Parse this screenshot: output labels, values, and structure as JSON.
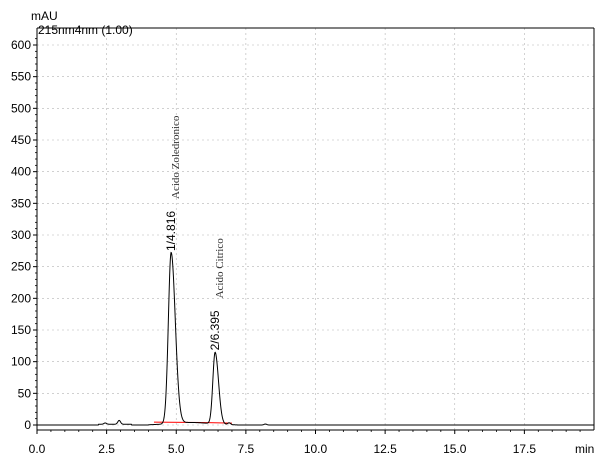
{
  "chart_data": {
    "type": "line",
    "y_unit": "mAU",
    "x_unit": "min",
    "channel_label": "215nm4nm (1.00)",
    "xlim": [
      0,
      20
    ],
    "ylim": [
      -10,
      630
    ],
    "x_ticks": [
      0.0,
      2.5,
      5.0,
      7.5,
      10.0,
      12.5,
      15.0,
      17.5
    ],
    "x_tick_labels": [
      "0.0",
      "2.5",
      "5.0",
      "7.5",
      "10.0",
      "12.5",
      "15.0",
      "17.5"
    ],
    "y_ticks": [
      0,
      50,
      100,
      150,
      200,
      250,
      300,
      350,
      400,
      450,
      500,
      550,
      600
    ],
    "y_tick_labels": [
      "0",
      "50",
      "100",
      "150",
      "200",
      "250",
      "300",
      "350",
      "400",
      "450",
      "500",
      "550",
      "600"
    ],
    "grid": true,
    "trace_color": "#000000",
    "baseline_color": "#ff0000",
    "grid_color": "#b4b4b4",
    "peaks": [
      {
        "number_label": "1",
        "retention_time_label": "4.816",
        "retention_time": 4.816,
        "height": 270,
        "name": "Acido Zoledronico",
        "sigma": 0.11
      },
      {
        "number_label": "2",
        "retention_time_label": "6.395",
        "retention_time": 6.395,
        "height": 113,
        "name": "Acido Citrico",
        "sigma": 0.09
      }
    ],
    "minor_peaks": [
      {
        "x": 2.95,
        "height": 6
      },
      {
        "x": 2.45,
        "height": 2
      },
      {
        "x": 6.9,
        "height": 3
      },
      {
        "x": 8.2,
        "height": 1.5
      }
    ],
    "baseline_segments": [
      {
        "x1": 4.2,
        "y1": 4.5,
        "x2": 5.9,
        "y2": 4
      },
      {
        "x1": 5.9,
        "y1": 4,
        "x2": 7.0,
        "y2": 3
      }
    ]
  }
}
